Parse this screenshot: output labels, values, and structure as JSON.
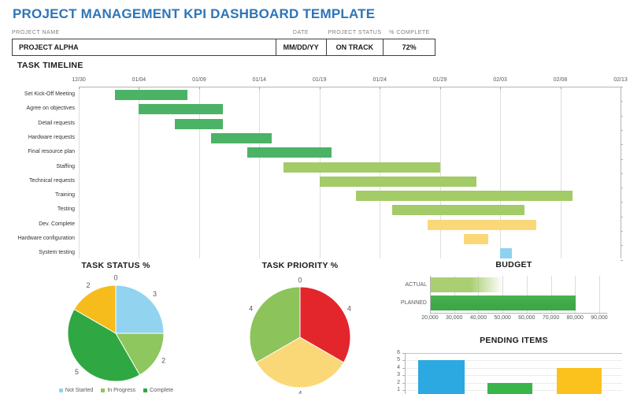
{
  "title": "PROJECT MANAGEMENT KPI DASHBOARD TEMPLATE",
  "project_table": {
    "headers": [
      "PROJECT NAME",
      "DATE",
      "PROJECT STATUS",
      "% COMPLETE"
    ],
    "row": {
      "name": "PROJECT ALPHA",
      "date": "MM/DD/YY",
      "status": "ON TRACK",
      "complete": "72%"
    }
  },
  "chart_data": [
    {
      "type": "gantt",
      "title": "TASK TIMELINE",
      "x_ticks": [
        "12/30",
        "01/04",
        "01/09",
        "01/14",
        "01/19",
        "01/24",
        "01/29",
        "02/03",
        "02/08",
        "02/13"
      ],
      "days_total": 45,
      "tasks": [
        {
          "name": "Set Kick-Off Meeting",
          "start": "01/02",
          "end": "01/08",
          "start_day": 3,
          "end_day": 9,
          "color": "#4CB266"
        },
        {
          "name": "Agree on objectives",
          "start": "01/04",
          "end": "01/11",
          "start_day": 5,
          "end_day": 12,
          "color": "#4CB266"
        },
        {
          "name": "Detail requests",
          "start": "01/07",
          "end": "01/11",
          "start_day": 8,
          "end_day": 12,
          "color": "#4CB266"
        },
        {
          "name": "Hardware requests",
          "start": "01/10",
          "end": "01/15",
          "start_day": 11,
          "end_day": 16,
          "color": "#4CB266"
        },
        {
          "name": "Final resource plan",
          "start": "01/13",
          "end": "01/20",
          "start_day": 14,
          "end_day": 21,
          "color": "#4CB266"
        },
        {
          "name": "Staffing",
          "start": "01/16",
          "end": "01/29",
          "start_day": 17,
          "end_day": 30,
          "color": "#A3CB67"
        },
        {
          "name": "Technical requests",
          "start": "01/19",
          "end": "02/01",
          "start_day": 20,
          "end_day": 33,
          "color": "#A3CB67"
        },
        {
          "name": "Training",
          "start": "01/22",
          "end": "02/09",
          "start_day": 23,
          "end_day": 41,
          "color": "#A3CB67"
        },
        {
          "name": "Testing",
          "start": "01/25",
          "end": "02/05",
          "start_day": 26,
          "end_day": 37,
          "color": "#A3CB67"
        },
        {
          "name": "Dev. Complete",
          "start": "01/28",
          "end": "02/06",
          "start_day": 29,
          "end_day": 38,
          "color": "#FAD878"
        },
        {
          "name": "Hardware configuration",
          "start": "01/31",
          "end": "02/02",
          "start_day": 32,
          "end_day": 34,
          "color": "#FAD878"
        },
        {
          "name": "System testing",
          "start": "02/03",
          "end": "02/04",
          "start_day": 35,
          "end_day": 36,
          "color": "#8FD2EF"
        }
      ]
    },
    {
      "type": "pie",
      "title": "TASK STATUS %",
      "slices": [
        {
          "label": "0",
          "value": 0,
          "color": "#b3b3b3"
        },
        {
          "label": "3",
          "value": 3,
          "color": "#92D3F0"
        },
        {
          "label": "2",
          "value": 2,
          "color": "#8DC75D"
        },
        {
          "label": "5",
          "value": 5,
          "color": "#2FA843"
        },
        {
          "label": "2",
          "value": 2,
          "color": "#F6BC1B"
        }
      ],
      "legend": [
        {
          "label": "Not Started",
          "color": "#92D3F0"
        },
        {
          "label": "In Progress",
          "color": "#8DC75D"
        },
        {
          "label": "Complete",
          "color": "#2FA843"
        }
      ]
    },
    {
      "type": "pie",
      "title": "TASK PRIORITY %",
      "slices": [
        {
          "label": "0",
          "value": 0,
          "color": "#b3b3b3"
        },
        {
          "label": "4",
          "value": 4,
          "color": "#E3262B"
        },
        {
          "label": "4",
          "value": 4,
          "color": "#FAD878"
        },
        {
          "label": "4",
          "value": 4,
          "color": "#8CC35B"
        }
      ]
    },
    {
      "type": "bar-horizontal",
      "title": "BUDGET",
      "categories": [
        "ACTUAL",
        "PLANNED"
      ],
      "values": [
        50000,
        80000
      ],
      "colors": [
        "#AACF73",
        "#3EA748"
      ],
      "x_min": 20000,
      "x_max": 90000,
      "x_step": 10000,
      "x_ticks": [
        "20,000",
        "30,000",
        "40,000",
        "50,000",
        "60,000",
        "70,000",
        "80,000",
        "90,000"
      ],
      "actual_fades_out": true
    },
    {
      "type": "bar",
      "title": "PENDING ITEMS",
      "values": [
        5,
        2,
        4
      ],
      "colors": [
        "#2BA9E0",
        "#3AB54A",
        "#FBC21D"
      ],
      "y_ticks": [
        "6",
        "5",
        "4",
        "3",
        "2",
        "1"
      ],
      "y_max": 6
    }
  ]
}
